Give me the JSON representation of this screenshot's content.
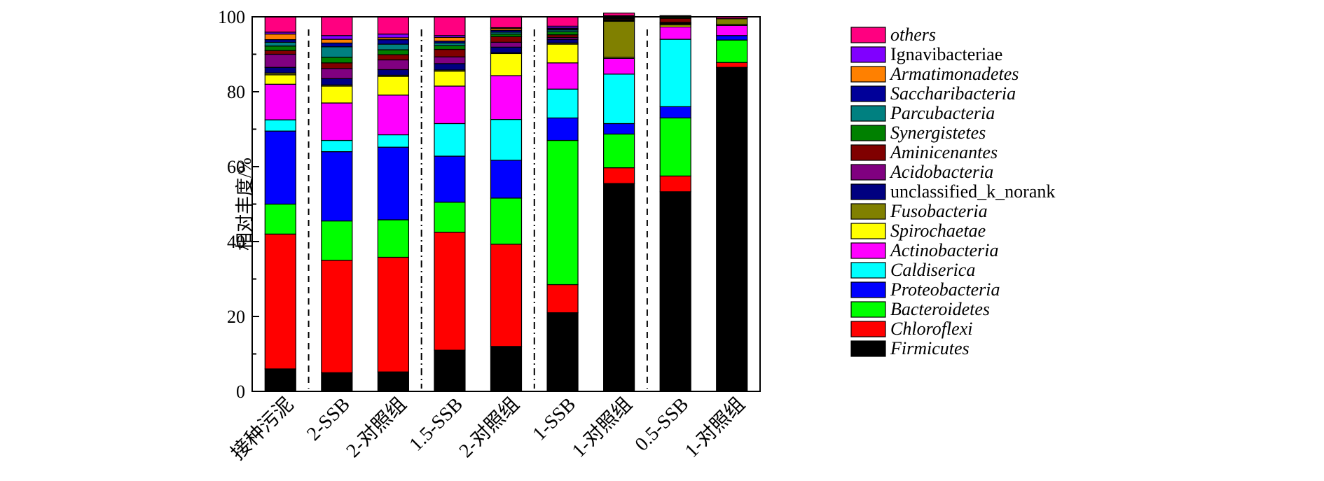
{
  "chart_data": {
    "type": "bar",
    "stacked": true,
    "title": "",
    "xlabel": "",
    "ylabel": "相对丰度/%",
    "ylim": [
      0,
      100
    ],
    "yticks": [
      "0",
      "20",
      "40",
      "60",
      "80",
      "100"
    ],
    "grid": false,
    "legend_position": "right",
    "categories": [
      "接种污泥",
      "2-SSB",
      "2-对照组",
      "1.5-SSB",
      "2-对照组",
      "1-SSB",
      "1-对照组",
      "0.5-SSB",
      "1-对照组"
    ],
    "separators": [
      {
        "after": 0,
        "style": "dashed"
      },
      {
        "after": 2,
        "style": "dashdot"
      },
      {
        "after": 4,
        "style": "dashdot"
      },
      {
        "after": 6,
        "style": "dashed"
      }
    ],
    "series": [
      {
        "name": "Firmicutes",
        "italic": true,
        "color": "#000000",
        "values": [
          6,
          5,
          5.2,
          11,
          12,
          21,
          55.5,
          53.3,
          86.5
        ]
      },
      {
        "name": "Chloroflexi",
        "italic": true,
        "color": "#ff0000",
        "values": [
          36,
          30,
          30.6,
          31.5,
          27.3,
          7.5,
          4.2,
          4.2,
          1.3
        ]
      },
      {
        "name": "Bacteroidetes",
        "italic": true,
        "color": "#00ff00",
        "values": [
          8,
          10.5,
          10,
          8,
          12.3,
          38.5,
          9,
          15.5,
          6
        ]
      },
      {
        "name": "Proteobacteria",
        "italic": true,
        "color": "#0000ff",
        "values": [
          19.5,
          18.5,
          19.4,
          12.3,
          10.1,
          6,
          2.8,
          3,
          1.2
        ]
      },
      {
        "name": "Caldiserica",
        "italic": true,
        "color": "#00ffff",
        "values": [
          3,
          3,
          3.3,
          8.7,
          10.9,
          7.7,
          13.2,
          18,
          0
        ]
      },
      {
        "name": "Actinobacteria",
        "italic": true,
        "color": "#ff00ff",
        "values": [
          9.5,
          10,
          10.6,
          10,
          11.7,
          7,
          4.2,
          3.3,
          2.7
        ]
      },
      {
        "name": "Spirochaetae",
        "italic": true,
        "color": "#ffff00",
        "values": [
          2.5,
          4.5,
          5,
          4,
          5.9,
          5,
          0.3,
          0.5,
          0.3
        ]
      },
      {
        "name": "Fusobacteria",
        "italic": true,
        "color": "#808000",
        "values": [
          0.5,
          0.3,
          0.3,
          0.3,
          0.2,
          0.3,
          9.6,
          0.3,
          1.5
        ]
      },
      {
        "name": "unclassified_k_norank",
        "italic": false,
        "color": "#000080",
        "values": [
          1.5,
          1.7,
          1.5,
          1.7,
          1.5,
          1,
          0.2,
          0.2,
          0
        ]
      },
      {
        "name": "Acidobacteria",
        "italic": true,
        "color": "#800080",
        "values": [
          3.5,
          2.7,
          2.6,
          1.8,
          1.3,
          0.5,
          0.2,
          0.2,
          0
        ]
      },
      {
        "name": "Aminicenantes",
        "italic": true,
        "color": "#800000",
        "values": [
          1,
          1.5,
          1.4,
          2,
          1.5,
          0.7,
          0.3,
          1.1,
          0
        ]
      },
      {
        "name": "Synergistetes",
        "italic": true,
        "color": "#008000",
        "values": [
          1.2,
          1.5,
          1.3,
          1,
          0.7,
          0.8,
          0.2,
          0.3,
          0
        ]
      },
      {
        "name": "Parcubacteria",
        "italic": true,
        "color": "#008080",
        "values": [
          1,
          2.8,
          1.5,
          0.7,
          0.5,
          0.5,
          0.2,
          0,
          0
        ]
      },
      {
        "name": "Saccharibacteria",
        "italic": true,
        "color": "#000099",
        "values": [
          0.7,
          1,
          1.2,
          0.5,
          0.5,
          0.3,
          0.2,
          0,
          0
        ]
      },
      {
        "name": "Armatimonadetes",
        "italic": true,
        "color": "#ff8000",
        "values": [
          1.5,
          1,
          0.5,
          1,
          0.5,
          0.2,
          0,
          0,
          0
        ]
      },
      {
        "name": "Ignavibacteriae",
        "italic": false,
        "color": "#8000ff",
        "values": [
          0.5,
          1,
          1,
          0.5,
          0.2,
          0.5,
          0.2,
          0,
          0
        ]
      },
      {
        "name": "others",
        "italic": true,
        "color": "#ff0080",
        "values": [
          4.1,
          5,
          4.6,
          5,
          3,
          2.5,
          0.7,
          0.4,
          0.5
        ]
      }
    ]
  }
}
